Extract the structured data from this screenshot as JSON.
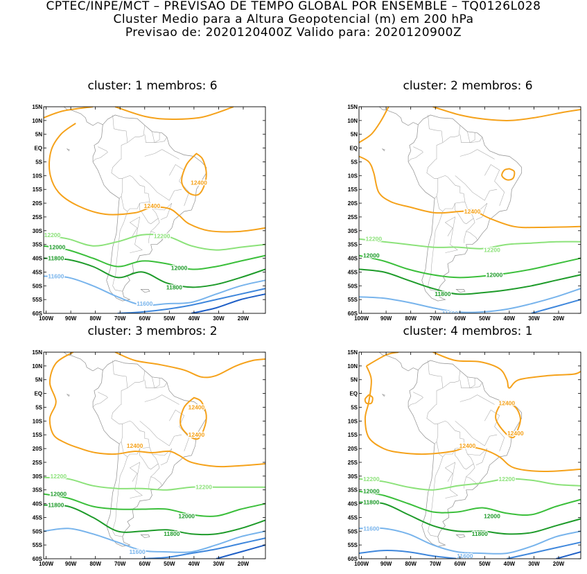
{
  "header": {
    "line1": "CPTEC/INPE/MCT – PREVISAO DE TEMPO GLOBAL POR ENSEMBLE – TQ0126L028",
    "line2": "Cluster Medio para a Altura Geopotencial (m) em 200 hPa",
    "line3": "Previsao de: 2020120400Z   Valido para: 2020120900Z"
  },
  "axes": {
    "lat_ticks": [
      "15N",
      "10N",
      "5N",
      "EQ",
      "5S",
      "10S",
      "15S",
      "20S",
      "25S",
      "30S",
      "35S",
      "40S",
      "45S",
      "50S",
      "55S",
      "60S"
    ],
    "lon_ticks": [
      "100W",
      "90W",
      "80W",
      "70W",
      "60W",
      "50W",
      "40W",
      "30W",
      "20W"
    ]
  },
  "colors": {
    "c12400": "#f5a21b",
    "c12200": "#8ce27a",
    "c12000": "#3bbf3b",
    "c11800": "#1e9b2a",
    "c11600": "#78b4ec",
    "c11400": "#3f87dc",
    "c11200": "#1f5fc6"
  },
  "panels": [
    {
      "title": "cluster: 1   membros: 6",
      "labels": [
        {
          "text": "12400",
          "lon": -57,
          "lat": -21
        },
        {
          "text": "12400",
          "lon": -38,
          "lat": -12.5
        },
        {
          "text": "12200",
          "lon": -97.5,
          "lat": -31.5
        },
        {
          "text": "12200",
          "lon": -53,
          "lat": -32
        },
        {
          "text": "12000",
          "lon": -95.5,
          "lat": -36
        },
        {
          "text": "11800",
          "lon": -96,
          "lat": -40
        },
        {
          "text": "12000",
          "lon": -46,
          "lat": -43.5
        },
        {
          "text": "11800",
          "lon": -48,
          "lat": -50.5
        },
        {
          "text": "11600",
          "lon": -96,
          "lat": -46.5
        },
        {
          "text": "11600",
          "lon": -60,
          "lat": -56.5
        }
      ]
    },
    {
      "title": "cluster: 2   membros: 6",
      "labels": [
        {
          "text": "12400",
          "lon": -55,
          "lat": -23
        },
        {
          "text": "12200",
          "lon": -95,
          "lat": -33
        },
        {
          "text": "12200",
          "lon": -47,
          "lat": -37
        },
        {
          "text": "12000",
          "lon": -96,
          "lat": -39
        },
        {
          "text": "12000",
          "lon": -46,
          "lat": -46
        },
        {
          "text": "11800",
          "lon": -67,
          "lat": -53
        },
        {
          "text": "11600",
          "lon": -64,
          "lat": -60
        }
      ]
    },
    {
      "title": "cluster: 3   membros: 2",
      "labels": [
        {
          "text": "12400",
          "lon": -39,
          "lat": -5
        },
        {
          "text": "12400",
          "lon": -64,
          "lat": -19
        },
        {
          "text": "12400",
          "lon": -39,
          "lat": -15
        },
        {
          "text": "12200",
          "lon": -95,
          "lat": -30
        },
        {
          "text": "12200",
          "lon": -36,
          "lat": -34
        },
        {
          "text": "12000",
          "lon": -95,
          "lat": -36.5
        },
        {
          "text": "11800",
          "lon": -96,
          "lat": -40.5
        },
        {
          "text": "12000",
          "lon": -43,
          "lat": -44.5
        },
        {
          "text": "11800",
          "lon": -49,
          "lat": -51
        },
        {
          "text": "11600",
          "lon": -63,
          "lat": -57.5
        }
      ]
    },
    {
      "title": "cluster: 4   membros: 1",
      "labels": [
        {
          "text": "12400",
          "lon": -41,
          "lat": -3.5
        },
        {
          "text": "12400",
          "lon": -57,
          "lat": -19
        },
        {
          "text": "12400",
          "lon": -37.5,
          "lat": -14.5
        },
        {
          "text": "12200",
          "lon": -96,
          "lat": -31
        },
        {
          "text": "12200",
          "lon": -41,
          "lat": -31
        },
        {
          "text": "12000",
          "lon": -96,
          "lat": -35.5
        },
        {
          "text": "11800",
          "lon": -96,
          "lat": -39.5
        },
        {
          "text": "12000",
          "lon": -47,
          "lat": -44.5
        },
        {
          "text": "11800",
          "lon": -52,
          "lat": -51
        },
        {
          "text": "11600",
          "lon": -96,
          "lat": -49
        },
        {
          "text": "11600",
          "lon": -58,
          "lat": -59
        }
      ]
    }
  ]
}
